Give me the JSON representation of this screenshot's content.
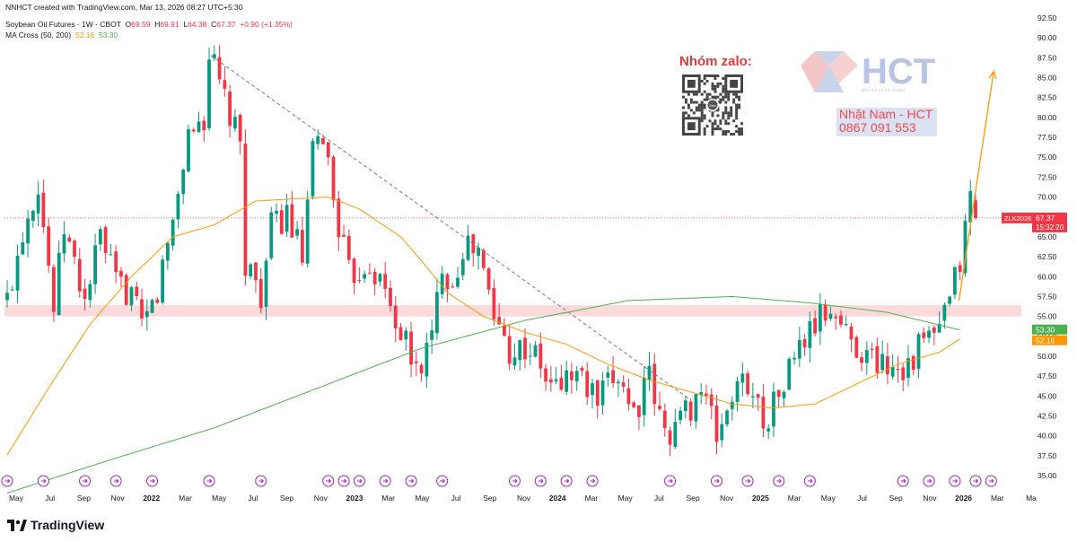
{
  "header": {
    "created": "NNHCT created with TradingView.com, Mar 13, 2026 08:27 UTC+5:30",
    "symbol": "Soybean Oil Futures · 1W · CBOT",
    "o_label": "O",
    "o_val": "69.59",
    "h_label": "H",
    "h_val": "69.91",
    "l_label": "L",
    "l_val": "64.38",
    "c_label": "C",
    "c_val": "67.37",
    "change": "+0.90 (+1.35%)",
    "ma_title": "MA Cross (50, 200)",
    "ma_fast": "52.16",
    "ma_slow": "53.30"
  },
  "watermark": {
    "zalo_title": "Nhóm zalo:",
    "qr_label": "Zalo",
    "brand": "HCT",
    "brand_tagline": "ĐẦU TƯ VÀ TÀI CHÍNH",
    "contact_name": "Nhật Nam - HCT",
    "contact_phone": "0867 091 553"
  },
  "footer": {
    "brand": "TradingView",
    "logo": "tradingview-logo-icon"
  },
  "chart_data": {
    "type": "candlestick",
    "interval": "1W",
    "y_axis": {
      "side": "right",
      "min": 35,
      "max": 92.5,
      "step": 2.5,
      "tick_labels": [
        "35.00",
        "37.50",
        "40.00",
        "42.50",
        "45.00",
        "47.50",
        "50.00",
        "52.50",
        "55.00",
        "57.50",
        "60.00",
        "62.50",
        "65.00",
        "67.50",
        "70.00",
        "72.50",
        "75.00",
        "77.50",
        "80.00",
        "82.50",
        "85.00",
        "87.50",
        "90.00",
        "92.50"
      ]
    },
    "x_axis": {
      "tick_labels": [
        "May",
        "Jul",
        "Sep",
        "Nov",
        "2022",
        "Mar",
        "May",
        "Jul",
        "Sep",
        "Nov",
        "2023",
        "Mar",
        "May",
        "Jul",
        "Sep",
        "Nov",
        "2024",
        "Mar",
        "May",
        "Jul",
        "Sep",
        "Nov",
        "2025",
        "Mar",
        "May",
        "Jul",
        "Sep",
        "Nov",
        "2026",
        "Mar",
        "Ma"
      ],
      "bold_labels": [
        "2022",
        "2023",
        "2024",
        "2025",
        "2026"
      ]
    },
    "last_price": {
      "symbol": "ZLK2026",
      "value": 67.37,
      "label": "67.37",
      "countdown": "15:32:20",
      "color": "#f23645"
    },
    "ma_labels": [
      {
        "name": "MA 200",
        "value": 53.3,
        "label": "53.30",
        "color": "#4caf50"
      },
      {
        "name": "MA 50",
        "value": 52.16,
        "label": "52.16",
        "color": "#ff9800"
      }
    ],
    "support_zone": {
      "low": 55.0,
      "high": 56.4,
      "color": "#fcd9da"
    },
    "trendline": {
      "start": {
        "t": 39.3,
        "v": 87.8
      },
      "end": {
        "t": 132.0,
        "v": 44.5
      },
      "style": "dashed",
      "color": "#787b86"
    },
    "projection_arrow": {
      "start": {
        "t": 183.8,
        "v": 57.0
      },
      "end": {
        "t": 190.5,
        "v": 85.8
      },
      "color": "#ff9800"
    },
    "colors": {
      "up": "#089981",
      "down": "#f23645",
      "ma_fast": "#ff9800",
      "ma_slow": "#4caf50"
    },
    "anchors": [
      [
        0,
        57
      ],
      [
        3,
        66
      ],
      [
        6,
        72
      ],
      [
        9,
        56
      ],
      [
        11,
        66
      ],
      [
        15,
        57
      ],
      [
        18,
        65
      ],
      [
        21,
        59
      ],
      [
        24,
        58
      ],
      [
        26,
        53
      ],
      [
        29,
        58
      ],
      [
        32,
        67
      ],
      [
        35,
        78
      ],
      [
        38,
        80
      ],
      [
        39,
        88
      ],
      [
        42,
        82
      ],
      [
        45,
        76
      ],
      [
        46,
        62
      ],
      [
        49,
        58
      ],
      [
        51,
        66
      ],
      [
        54,
        68
      ],
      [
        57,
        62
      ],
      [
        59,
        75
      ],
      [
        61,
        78
      ],
      [
        63,
        70
      ],
      [
        66,
        60
      ],
      [
        70,
        62
      ],
      [
        73,
        58
      ],
      [
        76,
        53
      ],
      [
        79,
        48
      ],
      [
        82,
        52
      ],
      [
        84,
        62
      ],
      [
        86,
        59
      ],
      [
        88,
        64
      ],
      [
        91,
        63
      ],
      [
        94,
        55
      ],
      [
        97,
        51
      ],
      [
        101,
        51
      ],
      [
        105,
        46
      ],
      [
        110,
        48
      ],
      [
        114,
        44
      ],
      [
        118,
        48
      ],
      [
        121,
        43
      ],
      [
        124,
        47
      ],
      [
        127,
        40
      ],
      [
        131,
        43
      ],
      [
        134,
        46
      ],
      [
        137,
        40
      ],
      [
        140,
        45
      ],
      [
        143,
        47
      ],
      [
        146,
        42
      ],
      [
        149,
        45
      ],
      [
        152,
        50
      ],
      [
        156,
        54
      ],
      [
        159,
        56
      ],
      [
        162,
        53
      ],
      [
        166,
        50
      ],
      [
        170,
        49
      ],
      [
        174,
        49
      ],
      [
        177,
        52
      ],
      [
        180,
        53
      ],
      [
        182,
        57
      ],
      [
        184,
        62
      ],
      [
        186,
        70
      ],
      [
        187,
        67.37
      ]
    ],
    "ma50": [
      [
        0,
        37.6
      ],
      [
        8,
        46
      ],
      [
        16,
        54
      ],
      [
        24,
        60
      ],
      [
        32,
        65
      ],
      [
        40,
        66.5
      ],
      [
        48,
        69.5
      ],
      [
        56,
        69.8
      ],
      [
        62,
        70
      ],
      [
        68,
        68.5
      ],
      [
        76,
        65
      ],
      [
        80,
        62
      ],
      [
        85,
        58
      ],
      [
        92,
        55
      ],
      [
        100,
        53
      ],
      [
        108,
        51.5
      ],
      [
        116,
        49
      ],
      [
        124,
        47
      ],
      [
        132,
        45.5
      ],
      [
        140,
        44
      ],
      [
        148,
        43.5
      ],
      [
        156,
        44
      ],
      [
        164,
        46.5
      ],
      [
        172,
        49
      ],
      [
        180,
        50.5
      ],
      [
        184,
        52.16
      ]
    ],
    "ma200": [
      [
        0,
        32.8
      ],
      [
        20,
        37
      ],
      [
        40,
        41
      ],
      [
        60,
        46
      ],
      [
        80,
        51
      ],
      [
        100,
        54.5
      ],
      [
        120,
        57
      ],
      [
        140,
        57.5
      ],
      [
        155,
        56.7
      ],
      [
        170,
        55.5
      ],
      [
        184,
        53.3
      ]
    ],
    "dividend_markers": [
      0,
      7,
      15,
      21,
      28,
      39,
      49,
      62,
      65,
      68,
      73,
      78,
      84,
      98,
      103,
      108,
      113,
      128,
      137,
      143,
      149,
      155,
      173,
      178,
      183,
      187,
      190
    ]
  }
}
